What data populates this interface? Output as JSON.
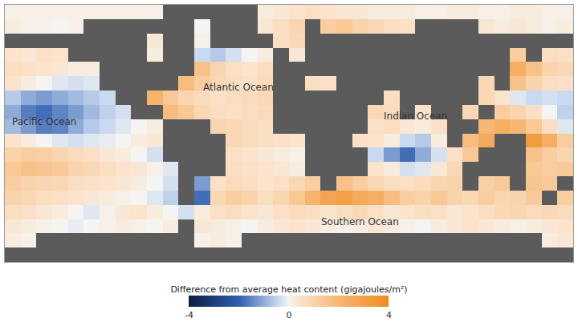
{
  "chart_data": {
    "type": "heatmap",
    "x": [
      -175,
      -165,
      -155,
      -145,
      -135,
      -125,
      -115,
      -105,
      -95,
      -85,
      -75,
      -65,
      -55,
      -45,
      -35,
      -25,
      -15,
      -5,
      5,
      15,
      25,
      35,
      45,
      55,
      65,
      75,
      85,
      95,
      105,
      115,
      125,
      135,
      145,
      155,
      165,
      175
    ],
    "y": [
      -85,
      -75,
      -65,
      -55,
      -45,
      -35,
      -25,
      -15,
      -5,
      5,
      15,
      25,
      35,
      45,
      55,
      65,
      75,
      85
    ],
    "z": [
      [
        null,
        null,
        null,
        null,
        null,
        null,
        null,
        null,
        null,
        null,
        null,
        null,
        null,
        null,
        null,
        null,
        null,
        null,
        null,
        null,
        null,
        null,
        null,
        null,
        null,
        null,
        null,
        null,
        null,
        null,
        null,
        null,
        null,
        null,
        null,
        null
      ],
      [
        0.2,
        0.1,
        null,
        null,
        null,
        null,
        null,
        null,
        null,
        null,
        null,
        null,
        0.1,
        0.2,
        0.1,
        null,
        null,
        null,
        null,
        null,
        null,
        null,
        null,
        null,
        null,
        null,
        null,
        null,
        null,
        null,
        null,
        null,
        null,
        null,
        0.2,
        0.3
      ],
      [
        0.3,
        0.2,
        0.1,
        0.0,
        -0.1,
        0.0,
        0.1,
        0.2,
        0.1,
        0.0,
        0.2,
        null,
        0.3,
        0.2,
        0.1,
        0.0,
        0.2,
        0.3,
        0.4,
        0.3,
        0.2,
        0.1,
        0.2,
        0.3,
        0.2,
        0.1,
        0.0,
        0.2,
        0.3,
        0.4,
        0.3,
        0.2,
        0.1,
        0.2,
        0.3,
        0.4
      ],
      [
        0.6,
        0.5,
        0.3,
        0.2,
        0.0,
        -0.2,
        0.1,
        0.3,
        0.4,
        0.2,
        0.0,
        -0.3,
        0.2,
        0.5,
        0.6,
        0.4,
        0.3,
        0.5,
        0.7,
        0.6,
        0.4,
        0.6,
        0.8,
        0.5,
        0.3,
        0.4,
        0.6,
        0.5,
        0.3,
        0.4,
        0.6,
        0.8,
        0.9,
        0.7,
        0.8,
        0.7
      ],
      [
        1.0,
        0.8,
        0.6,
        0.5,
        0.4,
        0.3,
        0.2,
        0.1,
        0.0,
        -0.2,
        -0.5,
        null,
        -1.8,
        0.8,
        1.2,
        1.0,
        0.6,
        0.9,
        1.4,
        2.2,
        2.8,
        3.0,
        2.6,
        2.4,
        1.8,
        1.2,
        1.0,
        1.4,
        1.0,
        0.8,
        1.2,
        0.9,
        1.0,
        1.3,
        null,
        1.2
      ],
      [
        1.2,
        1.0,
        0.9,
        0.8,
        0.6,
        0.5,
        0.4,
        0.3,
        0.2,
        0.0,
        -0.3,
        null,
        -1.2,
        0.5,
        0.7,
        0.6,
        0.4,
        0.5,
        0.8,
        1.2,
        null,
        1.6,
        1.2,
        0.8,
        0.6,
        0.5,
        0.7,
        0.9,
        1.0,
        null,
        1.1,
        1.3,
        null,
        1.5,
        1.3,
        null
      ],
      [
        1.4,
        1.6,
        1.5,
        1.3,
        1.0,
        0.8,
        0.6,
        0.4,
        0.3,
        0.1,
        -0.2,
        null,
        null,
        null,
        0.6,
        0.5,
        0.4,
        0.3,
        0.2,
        null,
        null,
        null,
        null,
        0.4,
        0.2,
        -0.3,
        -0.2,
        0.3,
        0.8,
        null,
        null,
        null,
        null,
        1.4,
        1.2,
        1.3
      ],
      [
        1.0,
        1.2,
        1.1,
        0.9,
        0.7,
        0.5,
        0.3,
        0.2,
        0.0,
        -0.3,
        null,
        null,
        null,
        null,
        0.5,
        0.4,
        0.3,
        0.2,
        0.1,
        null,
        null,
        null,
        null,
        -0.4,
        -1.2,
        -1.8,
        -1.0,
        -0.3,
        0.5,
        1.4,
        null,
        null,
        null,
        1.6,
        1.2,
        0.9
      ],
      [
        0.4,
        0.2,
        0.0,
        -0.2,
        -0.3,
        -0.2,
        -0.1,
        0.0,
        0.2,
        0.3,
        null,
        null,
        null,
        null,
        0.8,
        0.7,
        0.6,
        0.5,
        0.4,
        null,
        null,
        null,
        0.5,
        0.4,
        0.2,
        -0.4,
        -0.6,
        0.2,
        null,
        1.8,
        2.6,
        null,
        null,
        3.2,
        2.4,
        1.2
      ],
      [
        -0.8,
        -1.2,
        -1.6,
        -1.5,
        -1.0,
        -0.6,
        -0.4,
        -0.2,
        0.0,
        0.2,
        null,
        null,
        null,
        0.9,
        0.8,
        0.7,
        0.6,
        null,
        null,
        null,
        null,
        null,
        null,
        0.5,
        0.6,
        0.3,
        0.2,
        0.5,
        null,
        null,
        2.0,
        2.4,
        2.0,
        1.4,
        0.6,
        -0.2
      ],
      [
        -1.0,
        -1.6,
        -1.8,
        -1.5,
        -1.2,
        -0.8,
        -0.5,
        -0.3,
        null,
        null,
        1.8,
        1.4,
        0.8,
        0.6,
        0.5,
        0.6,
        0.7,
        null,
        null,
        null,
        null,
        null,
        null,
        0.8,
        0.7,
        null,
        0.4,
        null,
        null,
        0.8,
        null,
        1.2,
        0.9,
        0.5,
        0.0,
        -0.5
      ],
      [
        -0.6,
        -1.0,
        -1.2,
        -1.0,
        -0.8,
        -0.6,
        -0.4,
        null,
        null,
        2.2,
        1.4,
        0.9,
        0.7,
        0.5,
        0.6,
        0.7,
        0.8,
        null,
        null,
        null,
        null,
        null,
        null,
        null,
        0.6,
        null,
        null,
        null,
        null,
        null,
        0.8,
        0.4,
        -0.2,
        -0.4,
        -0.3,
        -0.4
      ],
      [
        0.4,
        0.2,
        0.0,
        -0.2,
        -0.3,
        -0.2,
        null,
        null,
        null,
        null,
        null,
        1.8,
        1.2,
        0.8,
        0.6,
        0.5,
        0.7,
        null,
        null,
        0.6,
        0.5,
        null,
        null,
        null,
        null,
        null,
        null,
        null,
        null,
        null,
        0.8,
        null,
        1.6,
        1.0,
        0.6,
        0.5
      ],
      [
        0.6,
        0.5,
        0.4,
        0.3,
        0.2,
        0.2,
        null,
        null,
        null,
        null,
        null,
        null,
        1.6,
        0.9,
        0.5,
        0.4,
        0.6,
        null,
        null,
        null,
        null,
        null,
        null,
        null,
        null,
        null,
        null,
        null,
        null,
        null,
        null,
        null,
        2.4,
        1.6,
        1.0,
        0.8
      ],
      [
        0.4,
        0.3,
        0.5,
        0.4,
        null,
        null,
        null,
        null,
        null,
        0.2,
        null,
        null,
        -0.4,
        -0.6,
        -0.3,
        0.0,
        0.2,
        null,
        0.3,
        null,
        null,
        null,
        null,
        null,
        null,
        null,
        null,
        null,
        null,
        null,
        null,
        null,
        1.2,
        null,
        0.6,
        0.5
      ],
      [
        null,
        null,
        null,
        null,
        null,
        null,
        null,
        null,
        null,
        0.3,
        null,
        null,
        0.1,
        null,
        null,
        null,
        null,
        0.6,
        0.8,
        null,
        null,
        null,
        null,
        null,
        null,
        null,
        null,
        null,
        null,
        null,
        null,
        null,
        null,
        null,
        null,
        null
      ],
      [
        0.2,
        0.1,
        0.1,
        0.0,
        0.1,
        null,
        null,
        null,
        null,
        null,
        null,
        null,
        0.0,
        null,
        null,
        null,
        0.3,
        0.6,
        0.9,
        null,
        1.2,
        1.4,
        1.0,
        0.8,
        0.6,
        0.5,
        null,
        null,
        null,
        null,
        0.3,
        0.2,
        0.3,
        0.2,
        0.1,
        0.2
      ],
      [
        0.1,
        0.1,
        0.1,
        0.1,
        0.1,
        0.1,
        0.1,
        0.1,
        0.1,
        0.1,
        null,
        null,
        null,
        null,
        null,
        null,
        0.2,
        0.3,
        0.4,
        0.5,
        0.4,
        0.3,
        0.3,
        0.2,
        0.2,
        0.2,
        0.1,
        0.1,
        0.2,
        0.2,
        0.1,
        0.1,
        0.2,
        0.2,
        0.1,
        0.1
      ]
    ],
    "xlim": [
      -180,
      180
    ],
    "ylim": [
      -90,
      90
    ],
    "grid": false,
    "tick_labels": false,
    "colorbar": {
      "title": "Difference from average heat content (gigajoules/m²)",
      "range": [
        -4,
        4
      ],
      "ticks": [
        -4,
        0,
        4
      ]
    },
    "annotations": [
      {
        "text": "Atlantic Ocean",
        "x": -32,
        "y": 32
      },
      {
        "text": "Pacific Ocean",
        "x": -155,
        "y": 8
      },
      {
        "text": "Indian Ocean",
        "x": 80,
        "y": 12
      },
      {
        "text": "Southern Ocean",
        "x": 45,
        "y": -62
      }
    ]
  }
}
